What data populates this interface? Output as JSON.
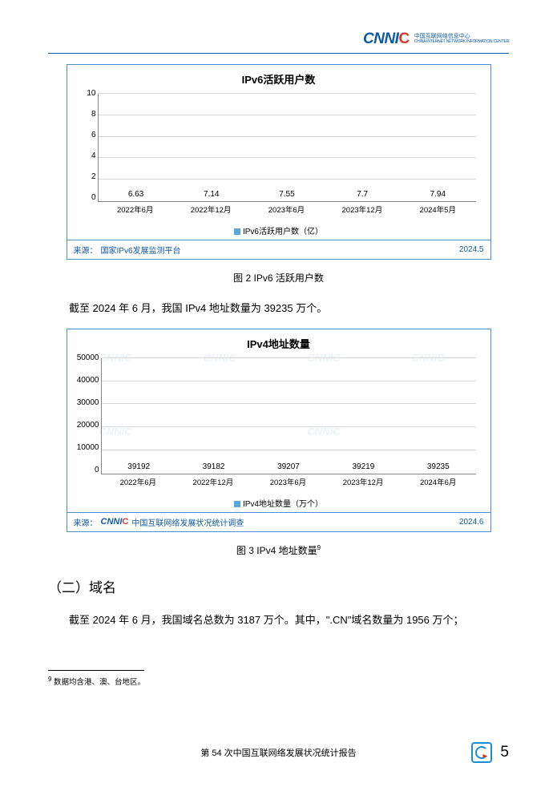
{
  "header": {
    "logo_main": "CNNI",
    "logo_accent": "C",
    "logo_cn": "中国互联网络信息中心",
    "logo_en": "CHINA INTERNET NETWORK INFORMATION CENTER"
  },
  "chart1": {
    "title": "IPv6活跃用户数",
    "categories": [
      "2022年6月",
      "2022年12月",
      "2023年6月",
      "2023年12月",
      "2024年5月"
    ],
    "values": [
      6.63,
      7.14,
      7.55,
      7.7,
      7.94
    ],
    "ymax": 10,
    "ytick_step": 2,
    "bar_color": "#5aa7dc",
    "legend_label": "IPv6活跃用户数（亿）",
    "source_prefix": "来源：",
    "source": "国家IPv6发展监测平台",
    "date": "2024.5"
  },
  "caption1": "图 2   IPv6 活跃用户数",
  "para1": "截至 2024 年 6 月，我国 IPv4 地址数量为 39235 万个。",
  "chart2": {
    "title": "IPv4地址数量",
    "categories": [
      "2022年6月",
      "2022年12月",
      "2023年6月",
      "2023年12月",
      "2024年6月"
    ],
    "values": [
      39192,
      39182,
      39207,
      39219,
      39235
    ],
    "ymax": 50000,
    "ytick_step": 10000,
    "bar_color": "#5aa7dc",
    "legend_label": "IPv4地址数量（万个）",
    "source_prefix": "来源：",
    "source": "中国互联网络发展状况统计调查",
    "date": "2024.6"
  },
  "caption2_pre": "图 3   IPv4 地址数量",
  "caption2_sup": "9",
  "heading": "（二）域名",
  "para2": "截至 2024 年 6 月，我国域名总数为 3187 万个。其中，\".CN\"域名数量为 1956 万个；",
  "footnote_marker": "9",
  "footnote_text": " 数据均含港、澳、台地区。",
  "footer_center": "第 54 次中国互联网络发展状况统计报告",
  "page_number": "5"
}
